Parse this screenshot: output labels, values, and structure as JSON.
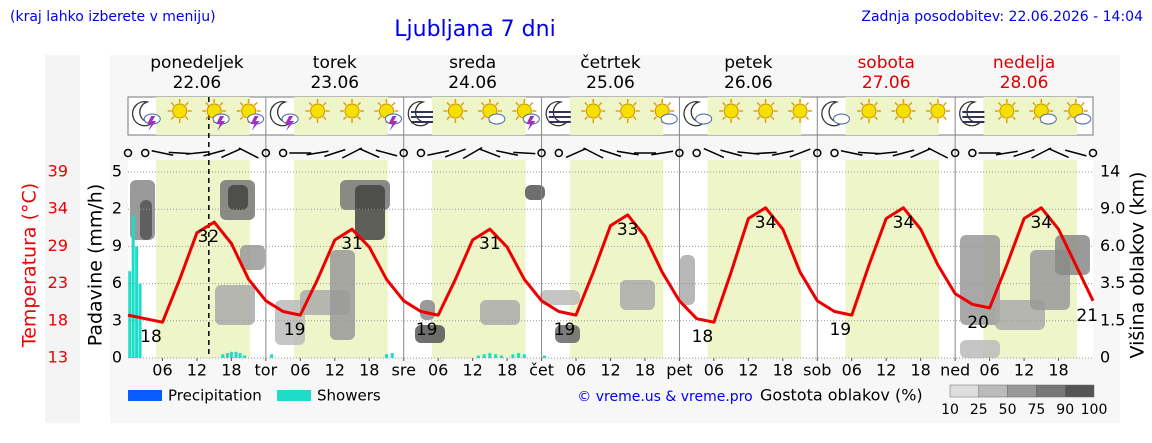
{
  "header": {
    "note": "(kraj lahko izberete v meniju)",
    "updated": "Zadnja posodobitev: 22.06.2026 - 14:04"
  },
  "chart_data": {
    "type": "line",
    "title": "Ljubljana 7 dni",
    "days": [
      {
        "name": "ponedeljek",
        "date": "22.06",
        "color": "#000000"
      },
      {
        "name": "torek",
        "date": "23.06",
        "color": "#000000"
      },
      {
        "name": "sreda",
        "date": "24.06",
        "color": "#000000"
      },
      {
        "name": "četrtek",
        "date": "25.06",
        "color": "#000000"
      },
      {
        "name": "petek",
        "date": "26.06",
        "color": "#000000"
      },
      {
        "name": "sobota",
        "date": "27.06",
        "color": "#dd0000"
      },
      {
        "name": "nedelja",
        "date": "28.06",
        "color": "#dd0000"
      }
    ],
    "ylabel": "Temperatura (°C)",
    "y_precip_label": "Padavine (mm/h)",
    "y2label": "Višina oblakov (km)",
    "xlim": [
      0,
      168
    ],
    "xticks": [
      {
        "value": 6,
        "label": "06"
      },
      12,
      18,
      {
        "value": 24,
        "label": "tor"
      },
      {
        "value": 30,
        "label": "06"
      },
      {
        "value": 36,
        "label": "12"
      },
      {
        "value": 42,
        "label": "18"
      },
      {
        "value": 48,
        "label": "sre"
      },
      {
        "value": 54,
        "label": "06"
      },
      {
        "value": 60,
        "label": "12"
      },
      {
        "value": 66,
        "label": "18"
      },
      {
        "value": 72,
        "label": "čet"
      },
      {
        "value": 78,
        "label": "06"
      },
      {
        "value": 84,
        "label": "12"
      },
      {
        "value": 90,
        "label": "18"
      },
      {
        "value": 96,
        "label": "pet"
      },
      {
        "value": 102,
        "label": "06"
      },
      {
        "value": 108,
        "label": "12"
      },
      {
        "value": 114,
        "label": "18"
      },
      {
        "value": 120,
        "label": "sob"
      },
      {
        "value": 126,
        "label": "06"
      },
      {
        "value": 132,
        "label": "12"
      },
      {
        "value": 138,
        "label": "18"
      },
      {
        "value": 144,
        "label": "ned"
      },
      {
        "value": 150,
        "label": "06"
      },
      {
        "value": 156,
        "label": "12"
      },
      {
        "value": 162,
        "label": "18"
      }
    ],
    "ylim": [
      13,
      39
    ],
    "yticks": [
      13,
      {
        "value": 18.2,
        "label": "18"
      },
      {
        "value": 23.4,
        "label": "23"
      },
      {
        "value": 28.6,
        "label": "29"
      },
      {
        "value": 33.8,
        "label": "34"
      },
      39
    ],
    "precip_lim": [
      0,
      15
    ],
    "precip_ticks": [
      0,
      3,
      6,
      9,
      {
        "value": 12,
        "label": "2"
      },
      {
        "value": 15,
        "label": "5"
      }
    ],
    "y2lim": [
      0,
      14
    ],
    "y2ticks": [
      0,
      1.5,
      3.5,
      {
        "value": 6,
        "label": "6.0"
      },
      {
        "value": 9,
        "label": "9.0"
      },
      14
    ],
    "grid": true,
    "daylight": [
      4.9,
      21.2
    ],
    "now": 14.07,
    "temperature": {
      "color": "#ee0000",
      "x": [
        0,
        3,
        6,
        9,
        12,
        15,
        18,
        21,
        24,
        27,
        30,
        33,
        36,
        39,
        42,
        45,
        48,
        51,
        54,
        57,
        60,
        63,
        66,
        69,
        72,
        75,
        78,
        81,
        84,
        87,
        90,
        93,
        96,
        99,
        102,
        105,
        108,
        111,
        114,
        117,
        120,
        123,
        126,
        129,
        132,
        135,
        138,
        141,
        144,
        147,
        150,
        153,
        156,
        159,
        162,
        165,
        168
      ],
      "values": [
        19,
        18.5,
        18,
        24,
        30.5,
        32,
        29,
        24,
        21,
        19.5,
        19,
        24,
        29.5,
        31,
        28.5,
        24,
        21,
        19.5,
        19,
        24,
        29.5,
        31,
        28.5,
        24,
        21,
        19.5,
        19,
        25,
        31.5,
        33,
        30,
        25,
        21,
        18.5,
        18,
        25,
        32.5,
        34,
        31,
        25,
        21,
        19.5,
        19,
        26,
        32.5,
        34,
        31,
        26,
        22,
        20.5,
        20,
        26,
        32.5,
        34,
        31,
        26,
        21
      ]
    },
    "extremes": [
      {
        "x": 4,
        "value": 18
      },
      {
        "x": 14,
        "value": 32
      },
      {
        "x": 29,
        "value": 19
      },
      {
        "x": 39,
        "value": 31
      },
      {
        "x": 52,
        "value": 19
      },
      {
        "x": 63,
        "value": 31
      },
      {
        "x": 76,
        "value": 19
      },
      {
        "x": 87,
        "value": 33
      },
      {
        "x": 100,
        "value": 18
      },
      {
        "x": 111,
        "value": 34
      },
      {
        "x": 124,
        "value": 19
      },
      {
        "x": 135,
        "value": 34
      },
      {
        "x": 148,
        "value": 20
      },
      {
        "x": 159,
        "value": 34
      },
      {
        "x": 167,
        "value": 21
      }
    ],
    "series": [
      {
        "name": "Precipitation",
        "color": "#0a5cff",
        "x": [],
        "values": []
      },
      {
        "name": "Showers",
        "color": "#1edcc8",
        "x": [
          0.3,
          0.9,
          1.5,
          2.1,
          16.5,
          17.3,
          18,
          18.8,
          19.5,
          20.3,
          25,
          45,
          46,
          61,
          62,
          63,
          64,
          65,
          67,
          68,
          69,
          72.5
        ],
        "values": [
          7,
          11.5,
          9,
          6,
          0.3,
          0.4,
          0.5,
          0.5,
          0.4,
          0.2,
          0.3,
          0.3,
          0.4,
          0.2,
          0.3,
          0.4,
          0.3,
          0.2,
          0.3,
          0.4,
          0.3,
          0.2
        ]
      }
    ],
    "copyright": "© vreme.us & vreme.pro",
    "cloud_scale": {
      "title": "Gostota oblakov (%)",
      "ticks": [
        10,
        25,
        50,
        75,
        90,
        100
      ],
      "colors": [
        "#dddddd",
        "#bbbbbb",
        "#999999",
        "#777777",
        "#555555"
      ]
    }
  }
}
